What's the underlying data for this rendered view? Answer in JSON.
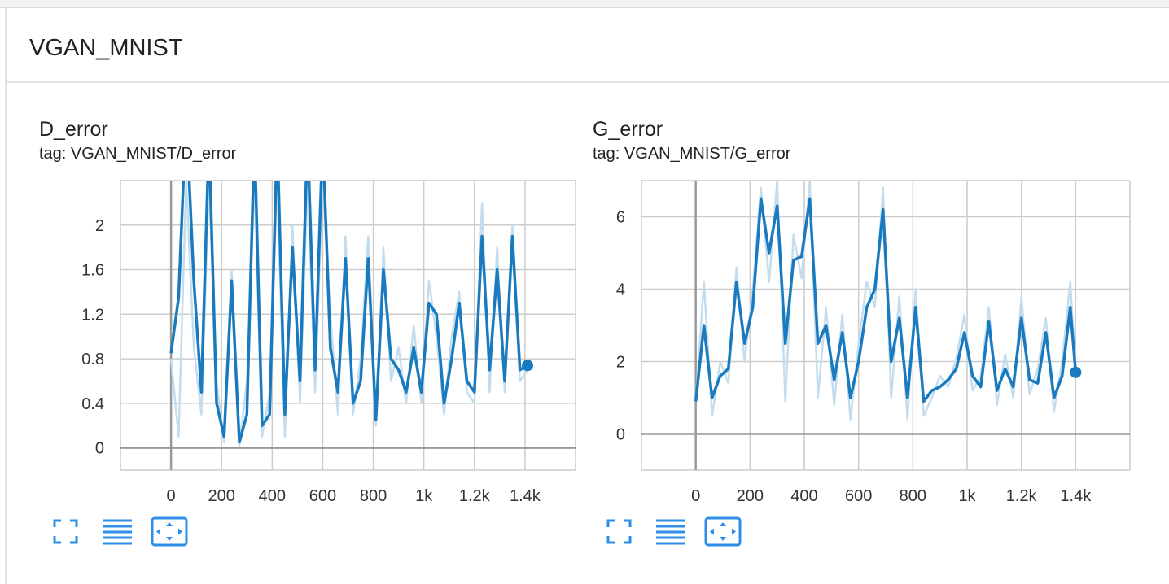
{
  "section_title": "VGAN_MNIST",
  "chart_data": [
    {
      "type": "line",
      "title": "D_error",
      "subtitle": "tag: VGAN_MNIST/D_error",
      "x": [
        0,
        30,
        60,
        90,
        120,
        150,
        180,
        210,
        240,
        270,
        300,
        330,
        360,
        390,
        420,
        450,
        480,
        510,
        540,
        570,
        600,
        630,
        660,
        690,
        720,
        750,
        780,
        810,
        840,
        870,
        900,
        930,
        960,
        990,
        1020,
        1050,
        1080,
        1110,
        1140,
        1170,
        1200,
        1230,
        1260,
        1290,
        1320,
        1350,
        1380,
        1410
      ],
      "series": [
        {
          "color": "#c3ddee",
          "values": [
            0.8,
            0.1,
            2.4,
            0.9,
            0.3,
            2.4,
            0.6,
            0.05,
            1.6,
            0.02,
            0.6,
            2.4,
            0.1,
            0.5,
            2.4,
            0.1,
            2.0,
            0.4,
            2.4,
            0.5,
            2.4,
            1.2,
            0.3,
            1.9,
            0.3,
            0.8,
            1.9,
            0.2,
            1.8,
            0.6,
            0.9,
            0.4,
            1.1,
            0.4,
            1.5,
            1.0,
            0.3,
            1.0,
            1.4,
            0.5,
            0.4,
            2.2,
            0.5,
            1.8,
            0.5,
            2.0,
            0.6,
            0.7
          ]
        },
        {
          "color": "#1a7abf",
          "values": [
            0.85,
            1.35,
            3.0,
            1.5,
            0.5,
            2.8,
            0.4,
            0.1,
            1.5,
            0.05,
            0.3,
            2.8,
            0.2,
            0.3,
            2.8,
            0.3,
            1.8,
            0.6,
            2.8,
            0.7,
            2.8,
            0.9,
            0.5,
            1.7,
            0.4,
            0.6,
            1.7,
            0.25,
            1.6,
            0.8,
            0.7,
            0.5,
            0.9,
            0.5,
            1.3,
            1.2,
            0.4,
            0.8,
            1.3,
            0.6,
            0.5,
            1.9,
            0.7,
            1.6,
            0.6,
            1.9,
            0.7,
            0.74
          ]
        }
      ],
      "xlim": [
        -200,
        1600
      ],
      "xticks": [
        0,
        200,
        400,
        600,
        800,
        {
          "value": 1000,
          "label": "1k"
        },
        {
          "value": 1200,
          "label": "1.2k"
        },
        {
          "value": 1400,
          "label": "1.4k"
        }
      ],
      "ylim": [
        -0.2,
        2.4
      ],
      "yticks": [
        0,
        0.4,
        0.8,
        1.2,
        1.6,
        2
      ],
      "grid": true
    },
    {
      "type": "line",
      "title": "G_error",
      "subtitle": "tag: VGAN_MNIST/G_error",
      "x": [
        0,
        30,
        60,
        90,
        120,
        150,
        180,
        210,
        240,
        270,
        300,
        330,
        360,
        390,
        420,
        450,
        480,
        510,
        540,
        570,
        600,
        630,
        660,
        690,
        720,
        750,
        780,
        810,
        840,
        870,
        900,
        930,
        960,
        990,
        1020,
        1050,
        1080,
        1110,
        1140,
        1170,
        1200,
        1230,
        1260,
        1290,
        1320,
        1350,
        1380,
        1400
      ],
      "series": [
        {
          "color": "#c3ddee",
          "values": [
            0.9,
            4.2,
            0.5,
            2.0,
            1.4,
            4.6,
            2.0,
            4.0,
            6.8,
            4.2,
            7.0,
            0.9,
            5.5,
            4.3,
            7.0,
            1.0,
            3.5,
            0.8,
            3.3,
            0.4,
            2.5,
            4.2,
            3.5,
            6.8,
            1.0,
            3.8,
            0.4,
            4.0,
            0.5,
            1.0,
            1.6,
            1.3,
            2.1,
            3.3,
            1.2,
            1.6,
            3.5,
            0.8,
            2.2,
            1.0,
            3.8,
            1.1,
            1.8,
            3.2,
            0.6,
            2.0,
            4.2,
            1.7
          ]
        },
        {
          "color": "#1a7abf",
          "values": [
            0.9,
            3.0,
            1.0,
            1.6,
            1.8,
            4.2,
            2.5,
            3.5,
            6.5,
            5.0,
            6.3,
            2.5,
            4.8,
            4.9,
            6.5,
            2.5,
            3.0,
            1.5,
            2.8,
            1.0,
            2.0,
            3.5,
            4.0,
            6.2,
            2.0,
            3.2,
            1.0,
            3.5,
            0.9,
            1.2,
            1.3,
            1.5,
            1.8,
            2.8,
            1.6,
            1.3,
            3.1,
            1.2,
            1.8,
            1.3,
            3.2,
            1.5,
            1.4,
            2.8,
            1.0,
            1.6,
            3.5,
            1.7
          ]
        }
      ],
      "xlim": [
        -200,
        1600
      ],
      "xticks": [
        0,
        200,
        400,
        600,
        800,
        {
          "value": 1000,
          "label": "1k"
        },
        {
          "value": 1200,
          "label": "1.2k"
        },
        {
          "value": 1400,
          "label": "1.4k"
        }
      ],
      "ylim": [
        -1,
        7
      ],
      "yticks": [
        0,
        2,
        4,
        6
      ],
      "grid": true
    }
  ]
}
